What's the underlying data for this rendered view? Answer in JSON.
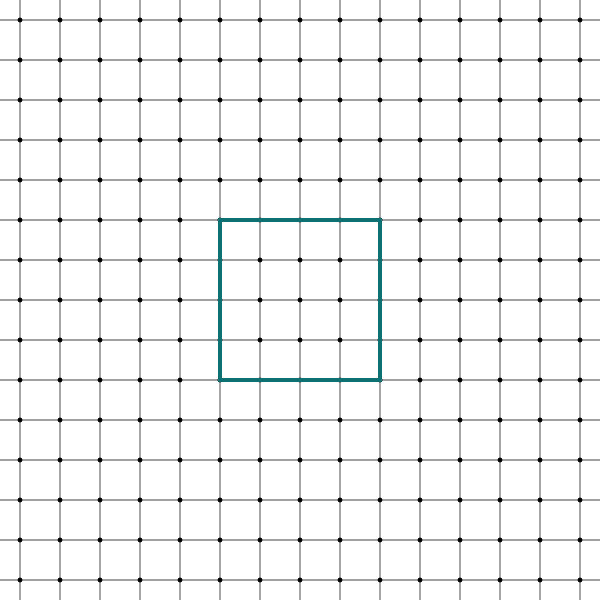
{
  "grid": {
    "columns": 15,
    "rows": 15,
    "line_color": "#000000",
    "dot_color": "#000000",
    "background": "#ffffff"
  },
  "square": {
    "col_start": 5,
    "row_start": 5,
    "col_span": 4,
    "row_span": 4,
    "stroke_color": "#0f7072"
  }
}
